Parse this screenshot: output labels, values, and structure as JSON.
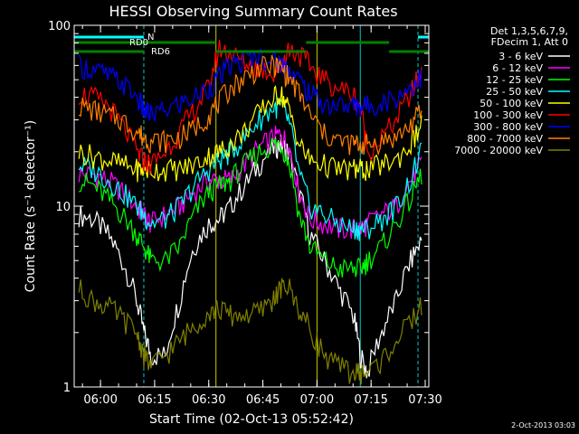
{
  "chart_data": {
    "type": "line",
    "title": "HESSI Observing Summary Count Rates",
    "xlabel": "Start Time (02-Oct-13 05:52:42)",
    "ylabel": "Count Rate (s⁻¹ detector⁻¹)",
    "x_ticks": [
      "06:00",
      "06:15",
      "06:30",
      "06:45",
      "07:00",
      "07:15",
      "07:30"
    ],
    "xlim": [
      "05:52:42",
      "07:31:00"
    ],
    "y_scale": "log",
    "ylim": [
      1,
      100
    ],
    "y_ticks": [
      "1",
      "10",
      "100"
    ],
    "grid": false,
    "legend_position": "top-right",
    "legend_header": [
      "Det 1,3,5,6,7,9,",
      "FDecim 1, Att 0"
    ],
    "footer_stamp": "2-Oct-2013 03:03",
    "annotations": [
      "N",
      "RD0",
      "RD6"
    ],
    "time_x": [
      "05:54",
      "05:58",
      "06:02",
      "06:06",
      "06:10",
      "06:12",
      "06:14",
      "06:18",
      "06:22",
      "06:26",
      "06:30",
      "06:33",
      "06:36",
      "06:40",
      "06:44",
      "06:48",
      "06:50",
      "06:52",
      "06:55",
      "06:58",
      "07:02",
      "07:06",
      "07:10",
      "07:12",
      "07:14",
      "07:18",
      "07:22",
      "07:26",
      "07:29"
    ],
    "series": [
      {
        "name": "3 - 6 keV",
        "color": "#ffffff",
        "values": [
          9,
          8.5,
          7,
          5,
          3,
          2,
          1.5,
          1.5,
          3,
          6,
          8,
          8.5,
          10,
          13,
          17,
          21,
          22,
          20,
          12,
          7,
          5,
          3.5,
          2.5,
          1.5,
          1.2,
          2,
          3,
          5,
          6.5
        ]
      },
      {
        "name": "6 - 12 keV",
        "color": "#ff00ff",
        "values": [
          15,
          15,
          14,
          12,
          10,
          9,
          8,
          9,
          10,
          12,
          14,
          14,
          14,
          17,
          21,
          24,
          25,
          22,
          12,
          8.5,
          8,
          7.5,
          7.5,
          7.5,
          8,
          9,
          10,
          14,
          17
        ]
      },
      {
        "name": "12 - 25 keV",
        "color": "#00ff00",
        "values": [
          14,
          13,
          11,
          9,
          7,
          6,
          5,
          5,
          6,
          9,
          12,
          13,
          14,
          17,
          20,
          22,
          22,
          18,
          9,
          6,
          5,
          4.5,
          4.5,
          4.5,
          5,
          6,
          8,
          11,
          15
        ]
      },
      {
        "name": "25 - 50 keV",
        "color": "#00ffff",
        "values": [
          17,
          16,
          14,
          12,
          10,
          9,
          8,
          8.5,
          10,
          13,
          16,
          18,
          20,
          24,
          30,
          35,
          36,
          30,
          15,
          10,
          9,
          8,
          7.5,
          7.5,
          7.5,
          8.5,
          10,
          14,
          20
        ]
      },
      {
        "name": "50 - 100 keV",
        "color": "#ffff00",
        "values": [
          20,
          19,
          18,
          17,
          16,
          16,
          16,
          16,
          16,
          17,
          19,
          20,
          22,
          26,
          33,
          40,
          42,
          35,
          22,
          18,
          17,
          16,
          16,
          16,
          16,
          17,
          18,
          22,
          28
        ]
      },
      {
        "name": "100 - 300 keV",
        "color": "#ff0000",
        "values": [
          42,
          40,
          36,
          28,
          20,
          18,
          17,
          20,
          26,
          34,
          45,
          75,
          70,
          62,
          58,
          55,
          60,
          74,
          70,
          60,
          50,
          45,
          42,
          35,
          20,
          24,
          30,
          42,
          55
        ]
      },
      {
        "name": "300 - 800 keV",
        "color": "#0000ff",
        "values": [
          60,
          57,
          53,
          48,
          40,
          34,
          32,
          34,
          37,
          40,
          45,
          52,
          60,
          64,
          67,
          65,
          62,
          58,
          50,
          42,
          37,
          36,
          36,
          36,
          36,
          38,
          40,
          46,
          52
        ]
      },
      {
        "name": "800 - 7000 keV",
        "color": "#ff8000",
        "values": [
          36,
          34,
          32,
          30,
          26,
          24,
          23,
          23,
          24,
          27,
          32,
          38,
          45,
          52,
          58,
          60,
          58,
          52,
          42,
          32,
          25,
          23,
          22,
          22,
          22,
          23,
          24,
          28,
          34
        ]
      },
      {
        "name": "7000 - 20000 keV",
        "color": "#808000",
        "values": [
          3.5,
          3,
          2.8,
          2.4,
          2,
          1.5,
          1.3,
          1.5,
          1.8,
          2.2,
          2.6,
          2.7,
          2.5,
          2.5,
          2.6,
          3.1,
          3.5,
          3.6,
          2.7,
          2.1,
          1.5,
          1.3,
          1.2,
          1.2,
          1.2,
          1.4,
          1.8,
          2.3,
          2.8
        ]
      }
    ]
  }
}
